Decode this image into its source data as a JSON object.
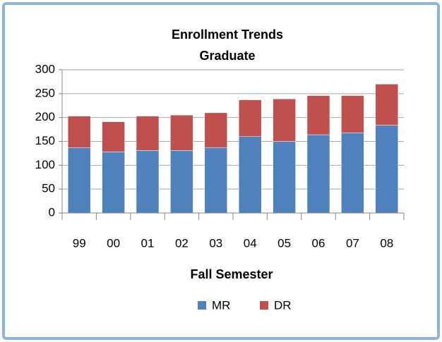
{
  "chart_data": {
    "type": "stacked_bar",
    "title": "Enrollment Trends",
    "subtitle": "Graduate",
    "x_label": "Fall Semester",
    "categories": [
      "99",
      "00",
      "01",
      "02",
      "03",
      "04",
      "05",
      "06",
      "07",
      "08"
    ],
    "series": [
      {
        "name": "MR",
        "color": "#4f81bd",
        "values": [
          137,
          128,
          131,
          131,
          137,
          160,
          150,
          164,
          168,
          184
        ]
      },
      {
        "name": "DR",
        "color": "#c0504d",
        "values": [
          66,
          63,
          72,
          74,
          73,
          77,
          89,
          82,
          78,
          86
        ]
      }
    ],
    "ylim": [
      0,
      300
    ],
    "yticks": [
      0,
      50,
      100,
      150,
      200,
      250,
      300
    ],
    "grid": true,
    "legend": "bottom"
  }
}
